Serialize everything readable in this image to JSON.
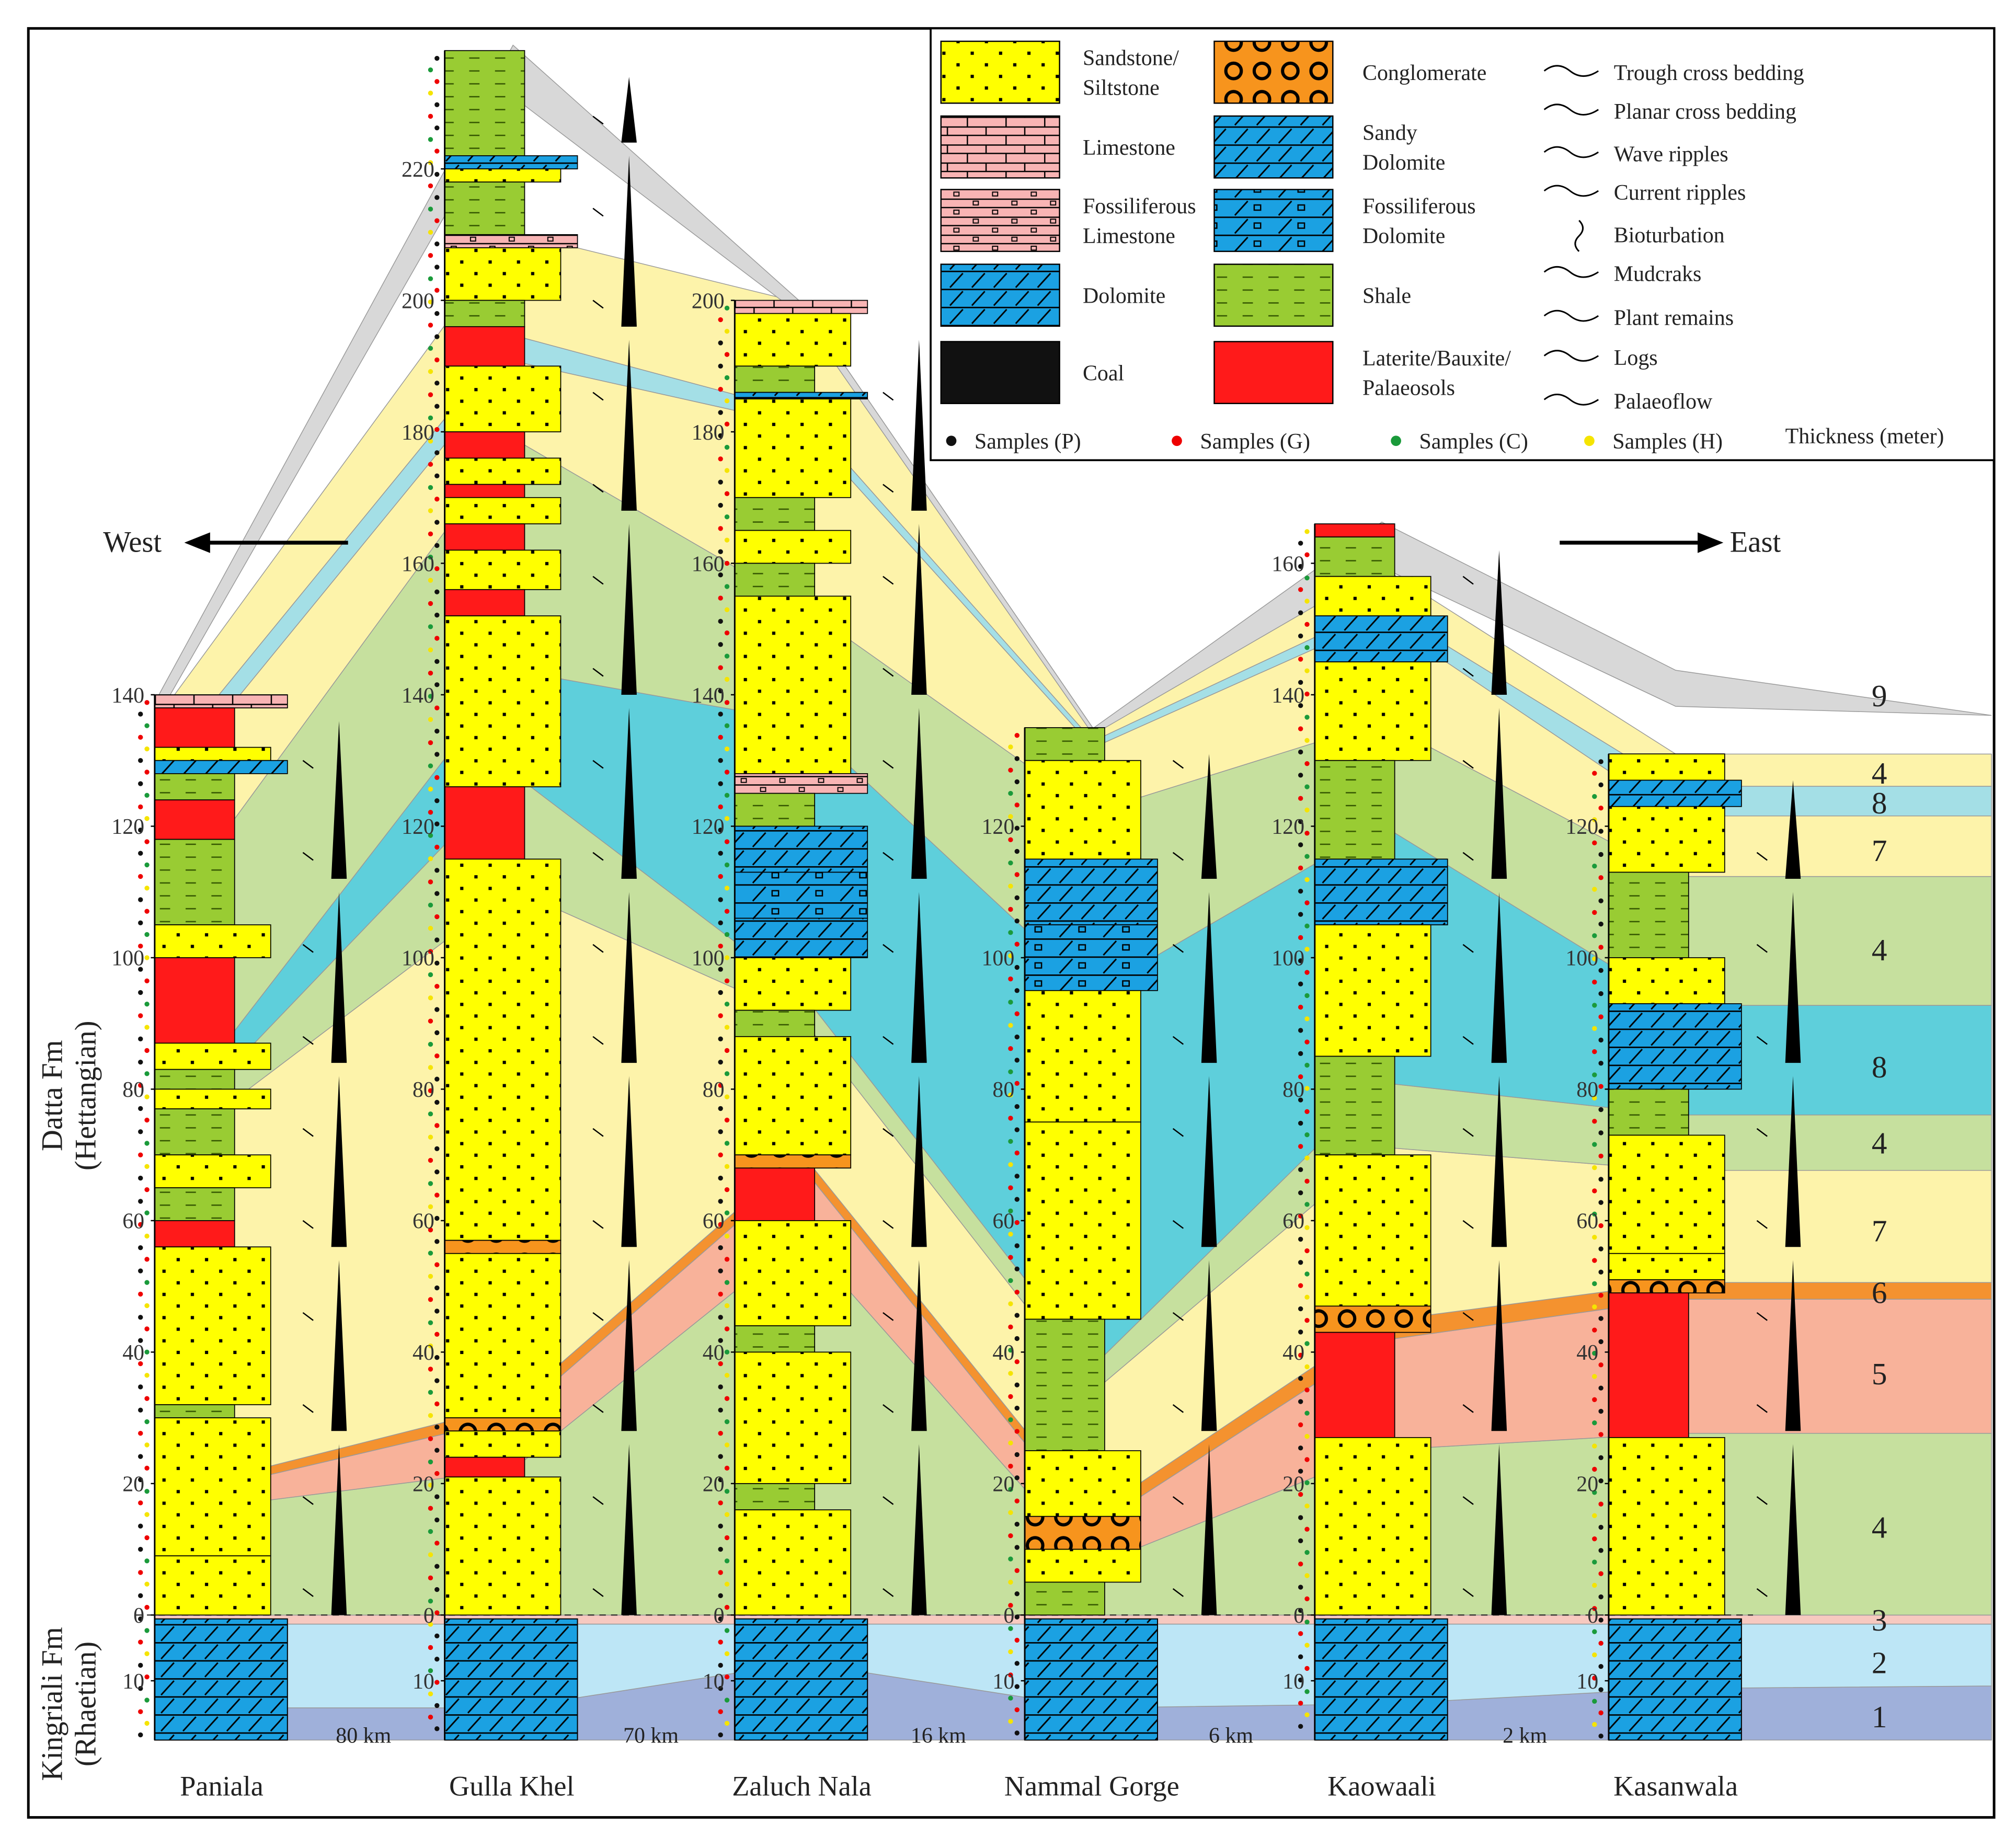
{
  "directions": {
    "west": "West",
    "east": "East"
  },
  "formations": {
    "datta": [
      "Datta Fm",
      "(Hettangian)"
    ],
    "kingriali": [
      "Kingriali Fm",
      "(Rhaetian)"
    ]
  },
  "sections": [
    {
      "name": "Paniala",
      "ticks": [
        140,
        120,
        100,
        80,
        60,
        40,
        20,
        0
      ],
      "below_ticks": [
        10
      ]
    },
    {
      "name": "Gulla Khel",
      "ticks": [
        220,
        200,
        180,
        160,
        140,
        120,
        100,
        80,
        60,
        40,
        20,
        0
      ],
      "below_ticks": [
        10
      ]
    },
    {
      "name": "Zaluch Nala",
      "ticks": [
        200,
        180,
        160,
        140,
        120,
        100,
        80,
        60,
        40,
        20,
        0
      ],
      "below_ticks": [
        10
      ]
    },
    {
      "name": "Nammal Gorge",
      "ticks": [
        120,
        100,
        80,
        60,
        40,
        20,
        0
      ],
      "below_ticks": [
        10
      ]
    },
    {
      "name": "Kaowaali",
      "ticks": [
        160,
        140,
        120,
        100,
        80,
        60,
        40,
        20,
        0
      ],
      "below_ticks": [
        10
      ]
    },
    {
      "name": "Kasanwala",
      "ticks": [
        120,
        100,
        80,
        60,
        40,
        20,
        0
      ],
      "below_ticks": [
        10
      ]
    }
  ],
  "distances": [
    "80 km",
    "70 km",
    "16 km",
    "6 km",
    "2 km"
  ],
  "units": [
    "9",
    "4",
    "8",
    "7",
    "4",
    "8",
    "4",
    "7",
    "6",
    "5",
    "4",
    "3",
    "2",
    "1"
  ],
  "legend": {
    "lithology": [
      {
        "label": [
          "Sandstone/",
          "Siltstone"
        ]
      },
      {
        "label": [
          "Limestone"
        ]
      },
      {
        "label": [
          "Fossiliferous",
          "Limestone"
        ]
      },
      {
        "label": [
          "Dolomite"
        ]
      },
      {
        "label": [
          "Coal"
        ]
      },
      {
        "label": [
          "Conglomerate"
        ]
      },
      {
        "label": [
          "Sandy",
          "Dolomite"
        ]
      },
      {
        "label": [
          "Fossiliferous",
          "Dolomite"
        ]
      },
      {
        "label": [
          "Shale"
        ]
      },
      {
        "label": [
          "Laterite/Bauxite/",
          "Palaeosols"
        ]
      }
    ],
    "structures": [
      "Trough cross bedding",
      "Planar cross bedding",
      "Wave ripples",
      "Current ripples",
      "Bioturbation",
      "Mudcraks",
      "Plant remains",
      "Logs",
      "Palaeoflow"
    ],
    "samples": [
      "Samples (P)",
      "Samples (G)",
      "Samples (C)",
      "Samples (H)"
    ],
    "thickness": "Thickness (meter)"
  }
}
